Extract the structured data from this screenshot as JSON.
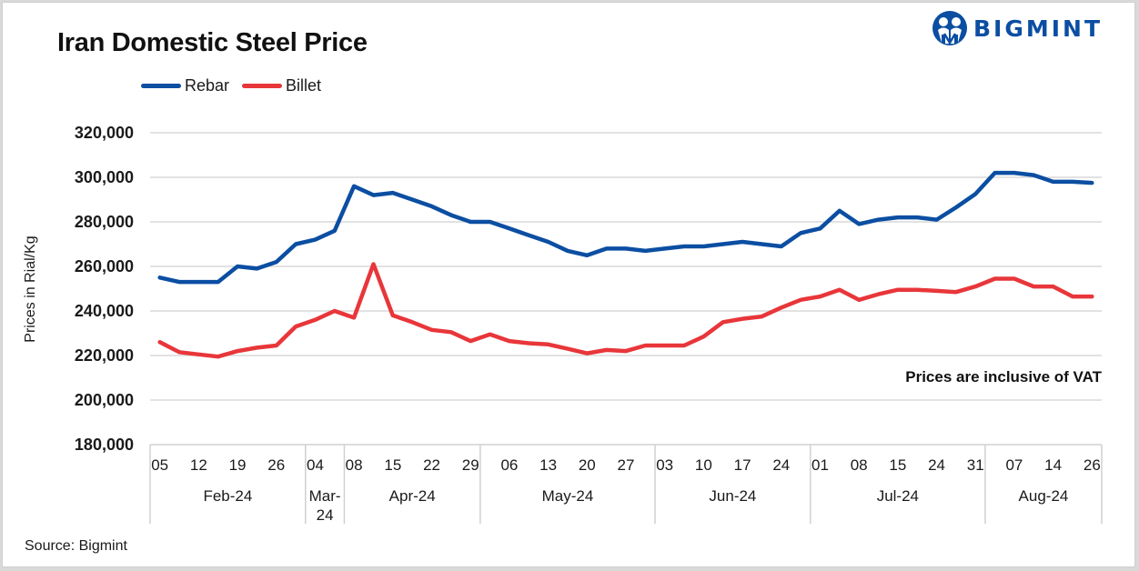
{
  "header": {
    "title": "Iran Domestic Steel Price",
    "logo_text": "BIGMINT",
    "logo_icon": "bigmint-people-icon"
  },
  "colors": {
    "rebar": "#0b4ea2",
    "billet": "#e8363a",
    "grid": "#d9d9d9",
    "logo": "#0b4ea2"
  },
  "footer": {
    "source": "Source: Bigmint"
  },
  "chart_data": {
    "type": "line",
    "title": "Iran Domestic Steel Price",
    "xlabel": "",
    "ylabel": "Prices in Rial/Kg",
    "ylim": [
      180000,
      320000
    ],
    "yticks": [
      180000,
      200000,
      220000,
      240000,
      260000,
      280000,
      300000,
      320000
    ],
    "ytick_labels": [
      "180,000",
      "200,000",
      "220,000",
      "240,000",
      "260,000",
      "280,000",
      "300,000",
      "320,000"
    ],
    "grid": true,
    "legend_position": "top-left",
    "annotation": "Prices are inclusive of VAT",
    "point_count": 49,
    "x_tick_labels": [
      {
        "index": 0,
        "label": "05"
      },
      {
        "index": 2,
        "label": "12"
      },
      {
        "index": 4,
        "label": "19"
      },
      {
        "index": 6,
        "label": "26"
      },
      {
        "index": 8,
        "label": "04"
      },
      {
        "index": 10,
        "label": "08"
      },
      {
        "index": 12,
        "label": "15"
      },
      {
        "index": 14,
        "label": "22"
      },
      {
        "index": 16,
        "label": "29"
      },
      {
        "index": 18,
        "label": "06"
      },
      {
        "index": 20,
        "label": "13"
      },
      {
        "index": 22,
        "label": "20"
      },
      {
        "index": 24,
        "label": "27"
      },
      {
        "index": 26,
        "label": "03"
      },
      {
        "index": 28,
        "label": "10"
      },
      {
        "index": 30,
        "label": "17"
      },
      {
        "index": 32,
        "label": "24"
      },
      {
        "index": 34,
        "label": "01"
      },
      {
        "index": 36,
        "label": "08"
      },
      {
        "index": 38,
        "label": "15"
      },
      {
        "index": 40,
        "label": "24"
      },
      {
        "index": 42,
        "label": "31"
      },
      {
        "index": 44,
        "label": "07"
      },
      {
        "index": 46,
        "label": "14"
      },
      {
        "index": 48,
        "label": "26"
      }
    ],
    "month_groups": [
      {
        "label": "Feb-24",
        "start": -0.5,
        "end": 7.5
      },
      {
        "label": "Mar-24",
        "start": 7.5,
        "end": 9.5,
        "wrap": [
          "Mar-",
          "24"
        ]
      },
      {
        "label": "Apr-24",
        "start": 9.5,
        "end": 16.5
      },
      {
        "label": "May-24",
        "start": 16.5,
        "end": 25.5
      },
      {
        "label": "Jun-24",
        "start": 25.5,
        "end": 33.5
      },
      {
        "label": "Jul-24",
        "start": 33.5,
        "end": 42.5
      },
      {
        "label": "Aug-24",
        "start": 42.5,
        "end": 48.5
      }
    ],
    "series": [
      {
        "name": "Rebar",
        "color": "#0b4ea2",
        "values": [
          255000,
          253000,
          253000,
          253000,
          260000,
          259000,
          262000,
          270000,
          272000,
          276000,
          296000,
          292000,
          293000,
          290000,
          287000,
          283000,
          280000,
          280000,
          277000,
          274000,
          271000,
          267000,
          265000,
          268000,
          268000,
          267000,
          268000,
          269000,
          269000,
          270000,
          271000,
          270000,
          269000,
          275000,
          277000,
          285000,
          279000,
          281000,
          282000,
          282000,
          281000,
          286500,
          292500,
          302000,
          302000,
          301000,
          298000,
          298000,
          297500
        ]
      },
      {
        "name": "Billet",
        "color": "#e8363a",
        "values": [
          226000,
          221500,
          220500,
          219500,
          222000,
          223500,
          224500,
          233000,
          236000,
          240000,
          237000,
          261000,
          238000,
          235000,
          231500,
          230500,
          226500,
          229500,
          226500,
          225500,
          225000,
          223000,
          221000,
          222500,
          222000,
          224500,
          224500,
          224500,
          228500,
          235000,
          236500,
          237500,
          241500,
          245000,
          246500,
          249500,
          245000,
          247500,
          249500,
          249500,
          249000,
          248500,
          251000,
          254500,
          254500,
          251000,
          251000,
          246500,
          246500
        ]
      }
    ]
  }
}
